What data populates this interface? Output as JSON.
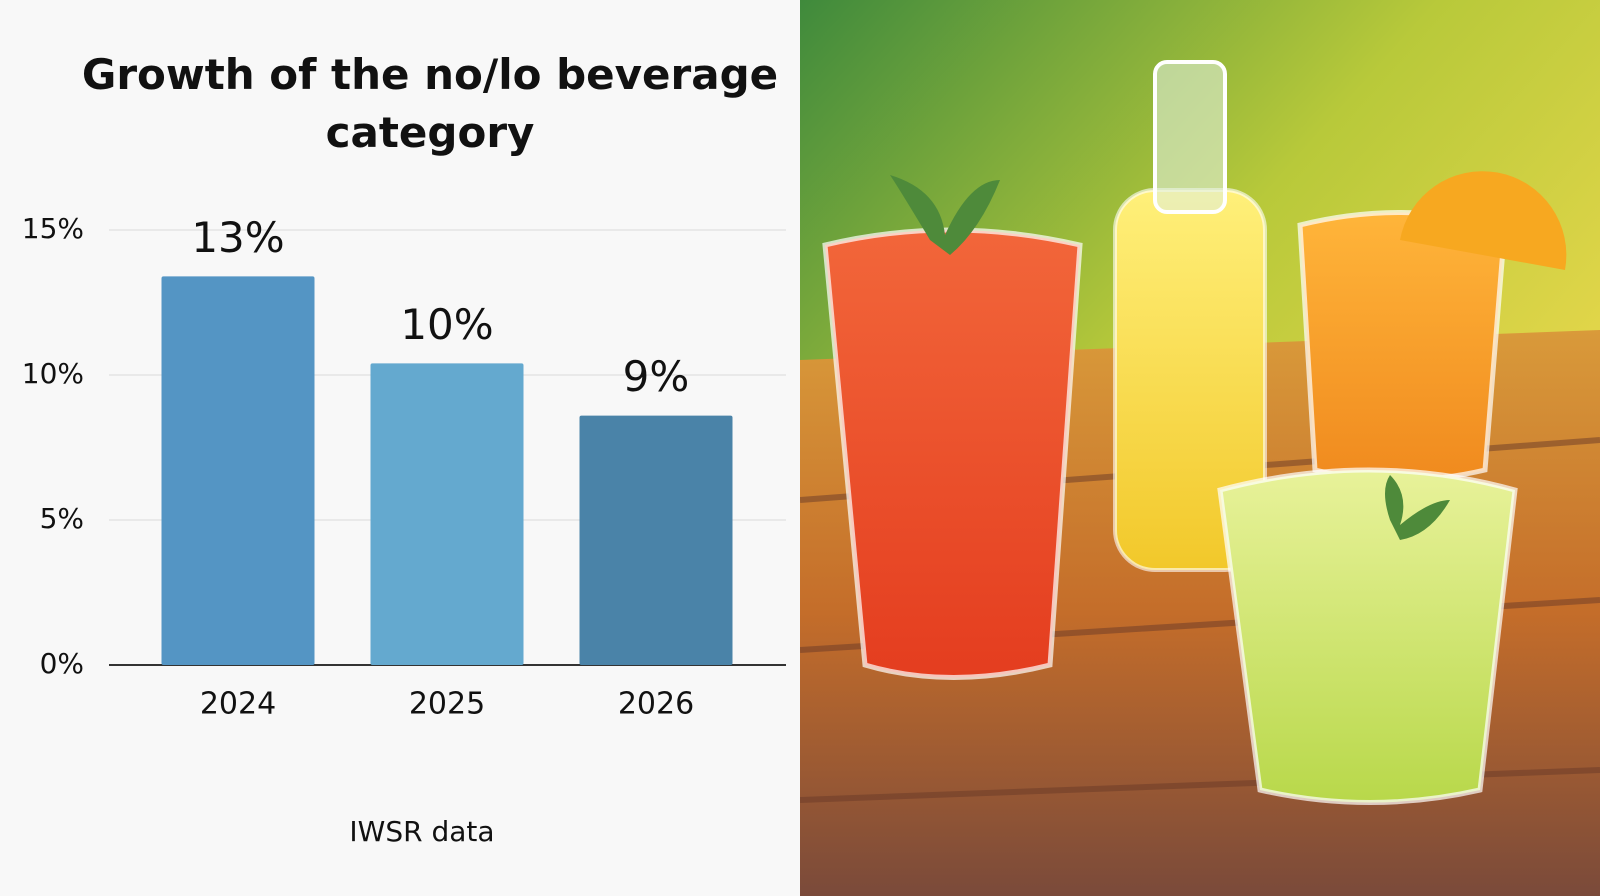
{
  "chart_data": {
    "type": "bar",
    "title": "Growth of the no/lo beverage category",
    "categories": [
      "2024",
      "2025",
      "2026"
    ],
    "values": [
      13.4,
      10.4,
      8.6
    ],
    "value_labels": [
      "13%",
      "10%",
      "9%"
    ],
    "colors": [
      "#5495c4",
      "#64a9cf",
      "#4a83a8"
    ],
    "ylim": [
      0,
      15
    ],
    "yticks": [
      {
        "value": 0,
        "label": "0%"
      },
      {
        "value": 5,
        "label": "5%"
      },
      {
        "value": 10,
        "label": "10%"
      },
      {
        "value": 15,
        "label": "15%"
      }
    ],
    "grid": true,
    "source": "IWSR data"
  }
}
